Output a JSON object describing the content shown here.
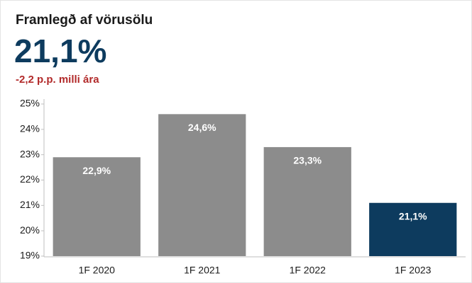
{
  "chart_data": {
    "type": "bar",
    "title": "Framlegð af vörusölu",
    "headline": "21,1%",
    "subtitle": "-2,2 p.p. milli ára",
    "categories": [
      "1F 2020",
      "1F 2021",
      "1F 2022",
      "1F 2023"
    ],
    "values": [
      22.9,
      24.6,
      23.3,
      21.1
    ],
    "value_labels": [
      "22,9%",
      "24,6%",
      "23,3%",
      "21,1%"
    ],
    "colors": [
      "#8c8c8c",
      "#8c8c8c",
      "#8c8c8c",
      "#0d3b5e"
    ],
    "ylim": [
      19,
      25
    ],
    "yticks": [
      {
        "value": 19,
        "label": "19%"
      },
      {
        "value": 20,
        "label": "20%"
      },
      {
        "value": 21,
        "label": "21%"
      },
      {
        "value": 22,
        "label": "22%"
      },
      {
        "value": 23,
        "label": "23%"
      },
      {
        "value": 24,
        "label": "24%"
      },
      {
        "value": 25,
        "label": "25%"
      }
    ],
    "grid": false
  }
}
